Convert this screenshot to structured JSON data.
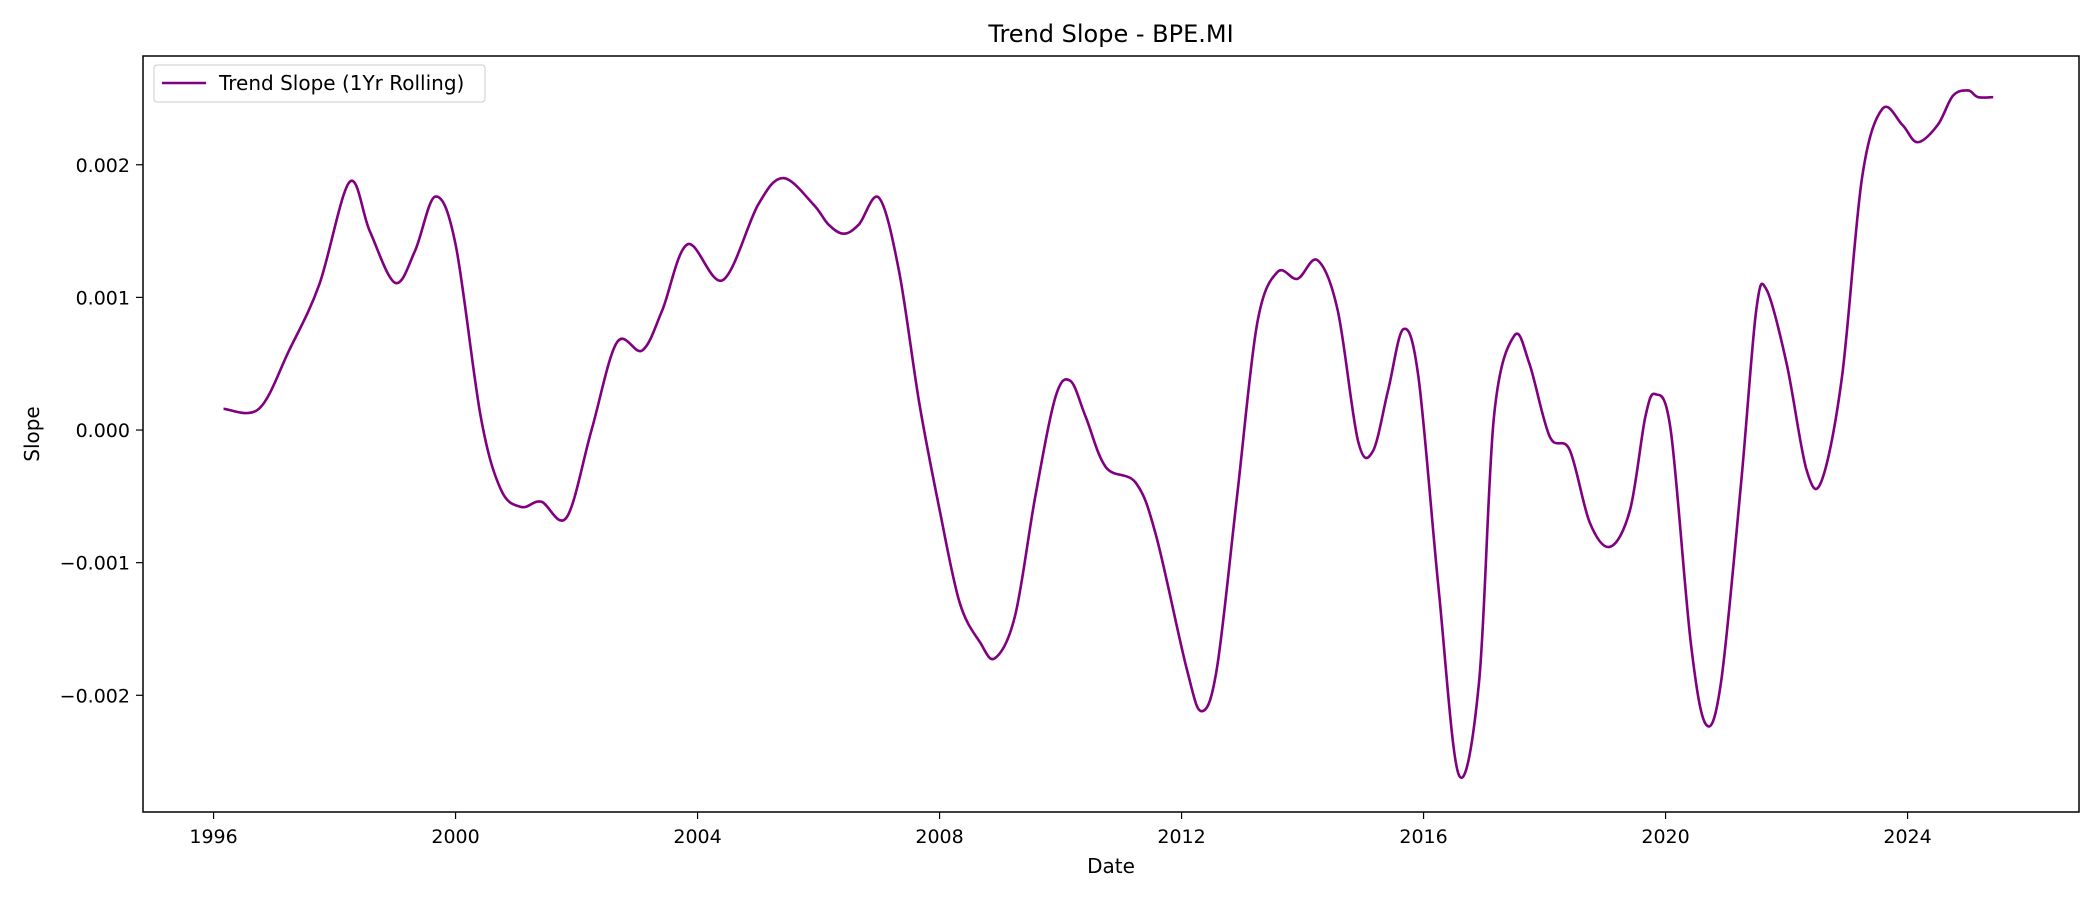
{
  "chart_data": {
    "type": "line",
    "title": "Trend Slope - BPE.MI",
    "xlabel": "Date",
    "ylabel": "Slope",
    "xlim": [
      "1994-11-01",
      "2026-11-01"
    ],
    "ylim": [
      -0.00288,
      0.00282
    ],
    "x_ticks": [
      "1996",
      "2000",
      "2004",
      "2008",
      "2012",
      "2016",
      "2020",
      "2024"
    ],
    "y_ticks": [
      {
        "value": 0.002,
        "label": "0.002"
      },
      {
        "value": 0.001,
        "label": "0.001"
      },
      {
        "value": 0.0,
        "label": "0.000"
      },
      {
        "value": -0.001,
        "label": "−0.001"
      },
      {
        "value": -0.002,
        "label": "−0.002"
      }
    ],
    "grid": false,
    "legend_position": "top-left",
    "series": [
      {
        "name": "Trend Slope (1Yr Rolling)",
        "color": "#800080",
        "points": [
          [
            "1996-03-01",
            0.00016
          ],
          [
            "1996-10-01",
            0.00016
          ],
          [
            "1997-04-01",
            0.0006
          ],
          [
            "1997-10-01",
            0.0011
          ],
          [
            "1998-04-01",
            0.00187
          ],
          [
            "1998-08-01",
            0.0015
          ],
          [
            "1999-01-01",
            0.00111
          ],
          [
            "1999-05-01",
            0.00135
          ],
          [
            "1999-09-01",
            0.00176
          ],
          [
            "2000-01-01",
            0.0014
          ],
          [
            "2000-06-01",
            0.0001
          ],
          [
            "2000-10-01",
            -0.00045
          ],
          [
            "2001-02-01",
            -0.00058
          ],
          [
            "2001-06-01",
            -0.00054
          ],
          [
            "2001-11-01",
            -0.00066
          ],
          [
            "2002-04-01",
            0.0
          ],
          [
            "2002-09-01",
            0.00066
          ],
          [
            "2003-02-01",
            0.0006
          ],
          [
            "2003-06-01",
            0.0009
          ],
          [
            "2003-11-01",
            0.0014
          ],
          [
            "2004-06-01",
            0.00113
          ],
          [
            "2005-01-01",
            0.0017
          ],
          [
            "2005-06-01",
            0.0019
          ],
          [
            "2005-12-01",
            0.0017
          ],
          [
            "2006-03-01",
            0.00155
          ],
          [
            "2006-06-01",
            0.00148
          ],
          [
            "2006-09-01",
            0.00155
          ],
          [
            "2007-01-01",
            0.00175
          ],
          [
            "2007-05-01",
            0.0012
          ],
          [
            "2007-09-01",
            0.0002
          ],
          [
            "2008-01-01",
            -0.0006
          ],
          [
            "2008-05-01",
            -0.0013
          ],
          [
            "2008-09-01",
            -0.0016
          ],
          [
            "2008-12-01",
            -0.00172
          ],
          [
            "2009-04-01",
            -0.0014
          ],
          [
            "2009-08-01",
            -0.0005
          ],
          [
            "2009-12-01",
            0.00025
          ],
          [
            "2010-03-01",
            0.00037
          ],
          [
            "2010-06-01",
            0.0001
          ],
          [
            "2010-10-01",
            -0.00028
          ],
          [
            "2011-04-01",
            -0.0004
          ],
          [
            "2011-08-01",
            -0.0008
          ],
          [
            "2012-02-01",
            -0.0018
          ],
          [
            "2012-05-01",
            -0.00212
          ],
          [
            "2012-08-01",
            -0.0018
          ],
          [
            "2012-12-01",
            -0.0005
          ],
          [
            "2013-04-01",
            0.0008
          ],
          [
            "2013-08-01",
            0.00119
          ],
          [
            "2013-12-01",
            0.00114
          ],
          [
            "2014-04-01",
            0.00128
          ],
          [
            "2014-08-01",
            0.0009
          ],
          [
            "2014-12-01",
            -8e-05
          ],
          [
            "2015-03-01",
            -0.00016
          ],
          [
            "2015-06-01",
            0.0003
          ],
          [
            "2015-09-01",
            0.00076
          ],
          [
            "2015-12-01",
            0.0004
          ],
          [
            "2016-04-01",
            -0.0012
          ],
          [
            "2016-08-01",
            -0.0026
          ],
          [
            "2016-12-01",
            -0.0019
          ],
          [
            "2017-03-01",
            0.0001
          ],
          [
            "2017-07-01",
            0.00071
          ],
          [
            "2017-10-01",
            0.0005
          ],
          [
            "2018-02-01",
            -5e-05
          ],
          [
            "2018-06-01",
            -0.00015
          ],
          [
            "2018-10-01",
            -0.0007
          ],
          [
            "2019-02-01",
            -0.00088
          ],
          [
            "2019-06-01",
            -0.0006
          ],
          [
            "2019-09-01",
            0.0001
          ],
          [
            "2019-11-01",
            0.00027
          ],
          [
            "2020-02-01",
            0.0
          ],
          [
            "2020-06-01",
            -0.0016
          ],
          [
            "2020-09-01",
            -0.00222
          ],
          [
            "2020-12-01",
            -0.0019
          ],
          [
            "2021-04-01",
            -0.0004
          ],
          [
            "2021-07-01",
            0.0009
          ],
          [
            "2021-09-01",
            0.00106
          ],
          [
            "2022-01-01",
            0.0005
          ],
          [
            "2022-05-01",
            -0.0003
          ],
          [
            "2022-08-01",
            -0.00038
          ],
          [
            "2022-12-01",
            0.0004
          ],
          [
            "2023-04-01",
            0.0019
          ],
          [
            "2023-08-01",
            0.00242
          ],
          [
            "2023-12-01",
            0.0023
          ],
          [
            "2024-03-01",
            0.00217
          ],
          [
            "2024-07-01",
            0.0023
          ],
          [
            "2024-10-01",
            0.00252
          ],
          [
            "2025-01-01",
            0.00256
          ],
          [
            "2025-03-01",
            0.00251
          ],
          [
            "2025-06-01",
            0.00251
          ]
        ]
      }
    ]
  }
}
